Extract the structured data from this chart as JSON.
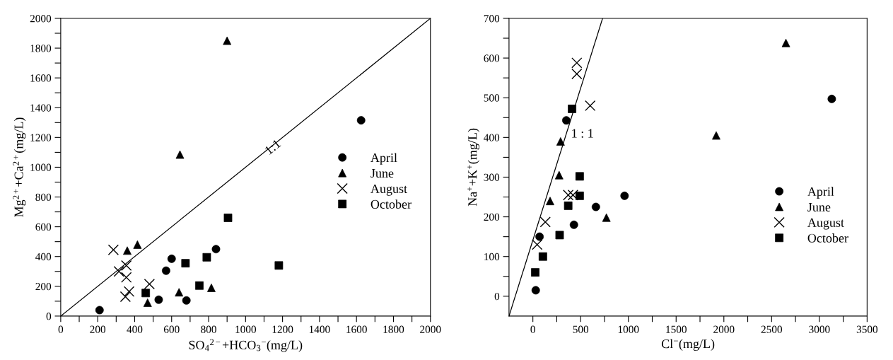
{
  "chart_data": [
    {
      "type": "scatter",
      "xlabel": "SO$_{4}$$^{2−}$+HCO$_{3}$$^{−}$(mg/L)",
      "ylabel": "Mg$^{2+}$+Ca$^{2+}$(mg/L)",
      "xlim": [
        0,
        2000
      ],
      "ylim": [
        0,
        2000
      ],
      "xticks": [
        0,
        {
          "value": 100,
          "label": null
        },
        200,
        {
          "value": 300,
          "label": null
        },
        400,
        {
          "value": 500,
          "label": null
        },
        600,
        {
          "value": 700,
          "label": null
        },
        800,
        {
          "value": 900,
          "label": null
        },
        1000,
        {
          "value": 1100,
          "label": null
        },
        1200,
        {
          "value": 1300,
          "label": null
        },
        1400,
        {
          "value": 1500,
          "label": null
        },
        1600,
        {
          "value": 1700,
          "label": null
        },
        1800,
        {
          "value": 1900,
          "label": null
        },
        2000
      ],
      "yticks": [
        0,
        {
          "value": 100,
          "label": null
        },
        200,
        {
          "value": 300,
          "label": null
        },
        400,
        {
          "value": 500,
          "label": null
        },
        600,
        {
          "value": 700,
          "label": null
        },
        800,
        {
          "value": 900,
          "label": null
        },
        1000,
        {
          "value": 1100,
          "label": null
        },
        1200,
        {
          "value": 1300,
          "label": null
        },
        1400,
        {
          "value": 1500,
          "label": null
        },
        1600,
        {
          "value": 1700,
          "label": null
        },
        1800,
        {
          "value": 1900,
          "label": null
        },
        2000
      ],
      "legend": "right",
      "grid": false,
      "annotations": [
        {
          "text": "1:1",
          "x": 1150,
          "y": 1130
        }
      ],
      "series": [
        {
          "name": "April",
          "color": "#000000",
          "marker": "circle",
          "x": [
            210,
            530,
            570,
            600,
            680,
            840,
            1625
          ],
          "values": [
            40,
            110,
            305,
            385,
            105,
            450,
            1315
          ]
        },
        {
          "name": "June",
          "color": "#000000",
          "marker": "triangle",
          "x": [
            360,
            415,
            470,
            640,
            645,
            815,
            900
          ],
          "values": [
            440,
            480,
            90,
            160,
            1085,
            190,
            1850
          ]
        },
        {
          "name": "August",
          "color": "#000000",
          "marker": "cross",
          "x": [
            285,
            315,
            355,
            355,
            350,
            370,
            480
          ],
          "values": [
            445,
            300,
            340,
            260,
            130,
            165,
            215
          ]
        },
        {
          "name": "October",
          "color": "#000000",
          "marker": "square",
          "x": [
            460,
            675,
            750,
            790,
            905,
            1180
          ],
          "values": [
            155,
            355,
            205,
            395,
            660,
            340
          ]
        },
        {
          "type": "line",
          "color": "#000000",
          "marker": "none",
          "x": [
            0,
            2000
          ],
          "values": [
            0,
            2000
          ]
        }
      ]
    },
    {
      "type": "scatter",
      "xlabel": "Cl$^{−}$(mg/L)",
      "ylabel": "Na$^{+}$+K$^{+}$(mg/L)",
      "xlim": [
        -250,
        3500
      ],
      "ylim": [
        -50,
        700
      ],
      "xticks": [
        0,
        {
          "value": 250,
          "label": null
        },
        500,
        {
          "value": 750,
          "label": null
        },
        1000,
        {
          "value": 1250,
          "label": null
        },
        1500,
        {
          "value": 1750,
          "label": null
        },
        2000,
        {
          "value": 2250,
          "label": null
        },
        2500,
        {
          "value": 2750,
          "label": null
        },
        3000,
        {
          "value": 3250,
          "label": null
        },
        3500
      ],
      "yticks": [
        0,
        {
          "value": 50,
          "label": null
        },
        100,
        {
          "value": 150,
          "label": null
        },
        200,
        {
          "value": 250,
          "label": null
        },
        300,
        {
          "value": 350,
          "label": null
        },
        400,
        {
          "value": 450,
          "label": null
        },
        500,
        {
          "value": 550,
          "label": null
        },
        600,
        {
          "value": 650,
          "label": null
        },
        700
      ],
      "legend": "lower right",
      "grid": false,
      "annotations": [
        "1 : 1"
      ],
      "series": [
        {
          "name": "April",
          "color": "#000000",
          "marker": "circle",
          "x": [
            30,
            70,
            350,
            430,
            660,
            960,
            3130
          ],
          "values": [
            15,
            150,
            443,
            180,
            225,
            253,
            497
          ]
        },
        {
          "name": "June",
          "color": "#000000",
          "marker": "triangle",
          "x": [
            290,
            275,
            180,
            770,
            1920,
            2650
          ],
          "values": [
            390,
            305,
            240,
            198,
            405,
            638
          ]
        },
        {
          "name": "August",
          "color": "#000000",
          "marker": "cross",
          "x": [
            460,
            460,
            600,
            370,
            420,
            130,
            45
          ],
          "values": [
            588,
            560,
            480,
            255,
            255,
            187,
            130
          ]
        },
        {
          "name": "October",
          "color": "#000000",
          "marker": "square",
          "x": [
            410,
            490,
            490,
            370,
            280,
            105,
            25
          ],
          "values": [
            472,
            302,
            253,
            228,
            154,
            100,
            60
          ]
        },
        {
          "type": "line",
          "color": "#000000",
          "marker": "none",
          "x": [
            -250,
            730
          ],
          "values": [
            -50,
            700
          ]
        }
      ]
    }
  ]
}
